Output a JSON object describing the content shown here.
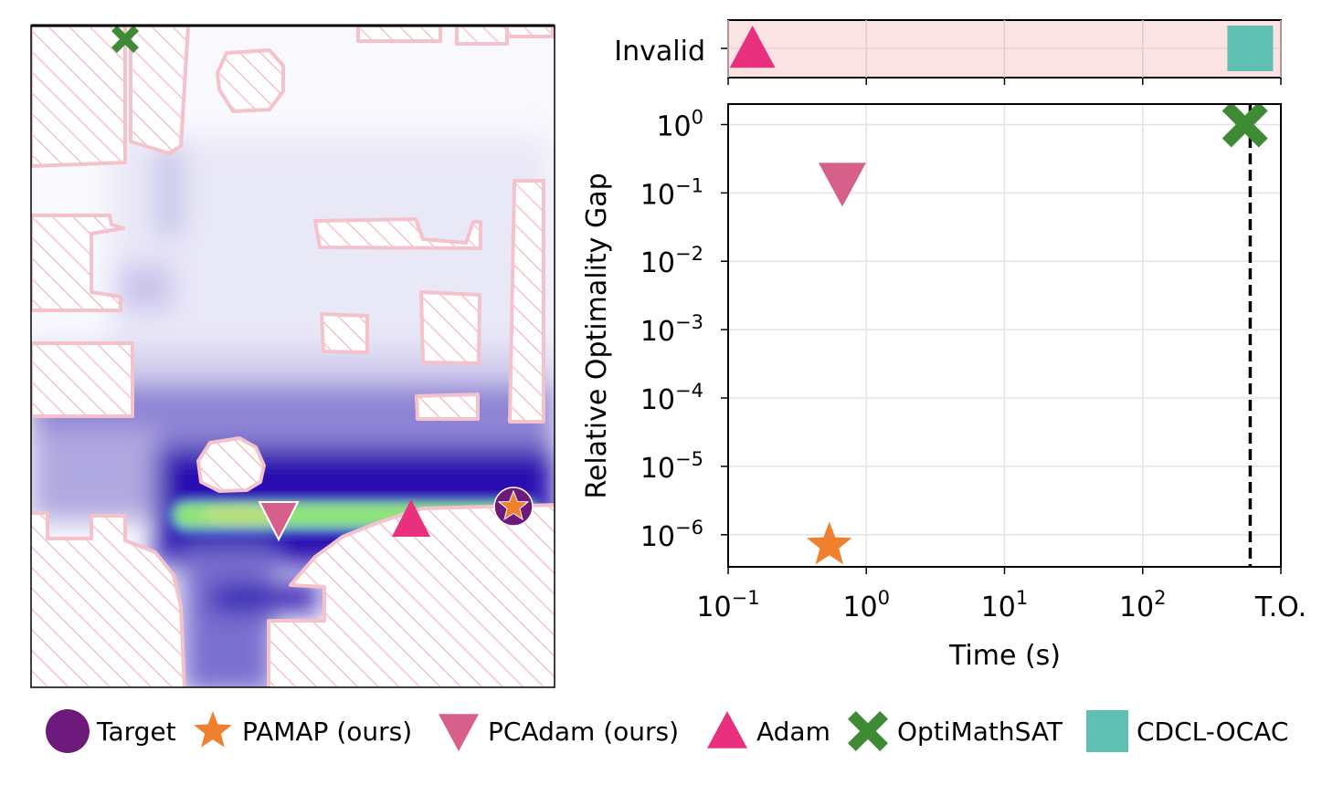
{
  "chart_data": [
    {
      "type": "heatmap",
      "title": "",
      "description_panel": "map",
      "colors": {
        "obstacle_edge": "#f4c2cb",
        "frame": "#000000"
      },
      "markers": [
        {
          "name": "OptiMathSAT",
          "symbol": "x"
        },
        {
          "name": "PCAdam (ours)",
          "symbol": "triangle-down"
        },
        {
          "name": "Adam",
          "symbol": "triangle-up"
        },
        {
          "name": "Target",
          "symbol": "circle"
        },
        {
          "name": "PAMAP (ours)",
          "symbol": "star"
        }
      ]
    },
    {
      "type": "scatter",
      "xlabel": "Time (s)",
      "ylabel": "Relative Optimality Gap",
      "xscale": "log",
      "yscale": "log",
      "xlim_log10": [
        -1,
        3
      ],
      "ylim_log10": [
        -6.47,
        0.3
      ],
      "x_ticks": [
        {
          "log10": -1,
          "base": "10",
          "exp": "−1"
        },
        {
          "log10": 0,
          "base": "10",
          "exp": "0"
        },
        {
          "log10": 1,
          "base": "10",
          "exp": "1"
        },
        {
          "log10": 2,
          "base": "10",
          "exp": "2"
        },
        {
          "log10": 3,
          "label": "T.O."
        }
      ],
      "y_ticks": [
        {
          "log10": 0,
          "base": "10",
          "exp": "0"
        },
        {
          "log10": -1,
          "base": "10",
          "exp": "−1"
        },
        {
          "log10": -2,
          "base": "10",
          "exp": "−2"
        },
        {
          "log10": -3,
          "base": "10",
          "exp": "−3"
        },
        {
          "log10": -4,
          "base": "10",
          "exp": "−4"
        },
        {
          "log10": -5,
          "base": "10",
          "exp": "−5"
        },
        {
          "log10": -6,
          "base": "10",
          "exp": "−6"
        }
      ],
      "timeout_s": 600,
      "grid": true,
      "invalid_label": "Invalid",
      "points": [
        {
          "name": "PAMAP (ours)",
          "x": 0.54,
          "y": 7e-07,
          "symbol": "star",
          "color": "#f07f2e"
        },
        {
          "name": "PCAdam (ours)",
          "x": 0.67,
          "y": 0.14,
          "symbol": "triangle-down",
          "color": "#d6608a"
        },
        {
          "name": "OptiMathSAT",
          "x": 550,
          "y": 1.0,
          "symbol": "x",
          "color": "#3f8a35"
        }
      ],
      "invalid_points": [
        {
          "name": "Adam",
          "x": 0.15,
          "symbol": "triangle-up",
          "color": "#e8307f"
        },
        {
          "name": "CDCL-OCAC",
          "x": 600,
          "symbol": "square",
          "color": "#5fbfb0"
        }
      ]
    }
  ],
  "legend": [
    {
      "label": "Target",
      "symbol": "circle",
      "color": "#6e1a7c"
    },
    {
      "label": "PAMAP (ours)",
      "symbol": "star",
      "color": "#f07f2e"
    },
    {
      "label": "PCAdam (ours)",
      "symbol": "triangle-down",
      "color": "#d6608a"
    },
    {
      "label": "Adam",
      "symbol": "triangle-up",
      "color": "#e8307f"
    },
    {
      "label": "OptiMathSAT",
      "symbol": "x",
      "color": "#3f8a35"
    },
    {
      "label": "CDCL-OCAC",
      "symbol": "square",
      "color": "#5fbfb0"
    }
  ]
}
